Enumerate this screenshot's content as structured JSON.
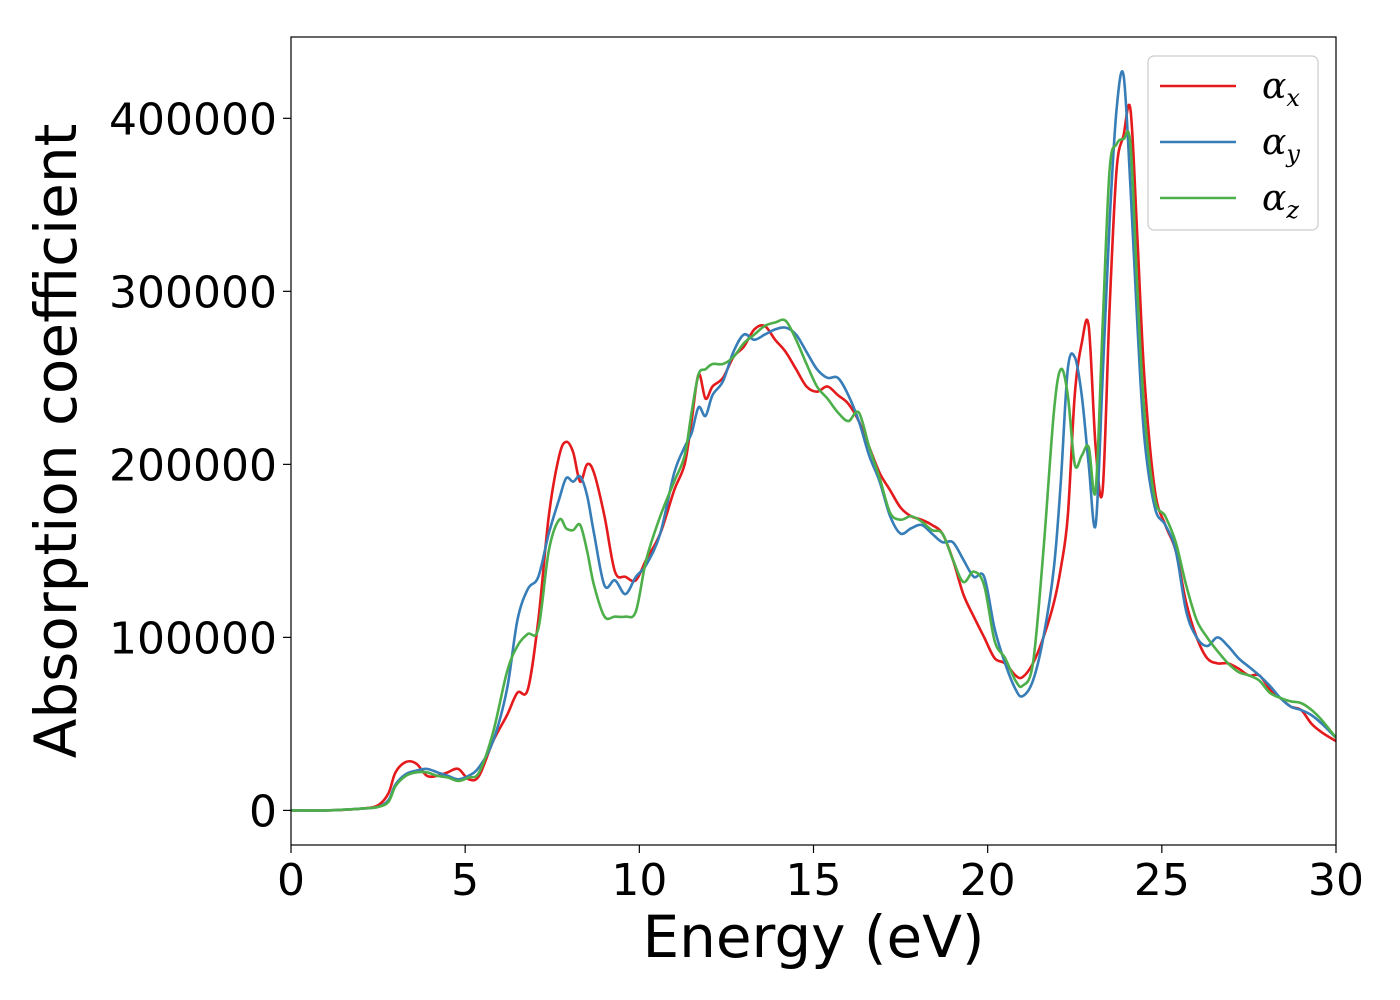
{
  "chart_data": {
    "type": "line",
    "xlabel": "Energy (eV)",
    "ylabel": "Absorption coefficient",
    "xlim": [
      0,
      30
    ],
    "ylim": [
      -20000,
      447000
    ],
    "xticks": [
      0,
      5,
      10,
      15,
      20,
      25,
      30
    ],
    "xtick_labels": [
      "0",
      "5",
      "10",
      "15",
      "20",
      "25",
      "30"
    ],
    "yticks": [
      0,
      100000,
      200000,
      300000,
      400000
    ],
    "ytick_labels": [
      "0",
      "100000",
      "200000",
      "300000",
      "400000"
    ],
    "grid": false,
    "legend_position": "top-right",
    "series": [
      {
        "name": "αx",
        "symbol": "α",
        "subscript": "x",
        "color": "#e41a1c",
        "x": [
          0,
          1,
          2,
          2.5,
          2.8,
          3.0,
          3.3,
          3.6,
          3.9,
          4.2,
          4.5,
          4.8,
          5.1,
          5.4,
          5.8,
          6.2,
          6.5,
          6.8,
          7.1,
          7.4,
          7.7,
          7.9,
          8.1,
          8.3,
          8.5,
          8.7,
          9.0,
          9.3,
          9.6,
          9.9,
          10.2,
          10.6,
          11.0,
          11.3,
          11.5,
          11.7,
          11.9,
          12.1,
          12.4,
          12.7,
          13.0,
          13.3,
          13.6,
          13.9,
          14.2,
          14.5,
          14.8,
          15.1,
          15.4,
          15.7,
          16.0,
          16.3,
          16.6,
          16.9,
          17.2,
          17.5,
          17.8,
          18.1,
          18.4,
          18.7,
          19.0,
          19.3,
          19.6,
          19.9,
          20.2,
          20.5,
          20.8,
          21.0,
          21.3,
          21.6,
          21.9,
          22.1,
          22.3,
          22.5,
          22.7,
          22.9,
          23.1,
          23.3,
          23.5,
          23.7,
          23.9,
          24.1,
          24.3,
          24.5,
          24.8,
          25.1,
          25.4,
          25.7,
          26.0,
          26.3,
          26.6,
          26.9,
          27.2,
          27.5,
          27.8,
          28.1,
          28.4,
          28.7,
          29.0,
          29.3,
          29.6,
          30
        ],
        "y": [
          0,
          0,
          1000,
          3000,
          10000,
          22000,
          28000,
          27000,
          20000,
          20000,
          22000,
          24000,
          18000,
          20000,
          40000,
          55000,
          68000,
          70000,
          110000,
          170000,
          205000,
          213000,
          207000,
          190000,
          200000,
          195000,
          170000,
          138000,
          135000,
          133000,
          145000,
          160000,
          185000,
          200000,
          225000,
          252000,
          238000,
          245000,
          250000,
          262000,
          268000,
          278000,
          280000,
          272000,
          265000,
          255000,
          245000,
          242000,
          245000,
          240000,
          235000,
          225000,
          210000,
          195000,
          185000,
          175000,
          170000,
          168000,
          165000,
          160000,
          145000,
          125000,
          112000,
          100000,
          88000,
          85000,
          78000,
          77000,
          85000,
          100000,
          120000,
          140000,
          170000,
          240000,
          270000,
          280000,
          210000,
          185000,
          290000,
          370000,
          390000,
          405000,
          330000,
          250000,
          185000,
          165000,
          150000,
          120000,
          100000,
          88000,
          85000,
          85000,
          82000,
          78000,
          78000,
          70000,
          65000,
          60000,
          58000,
          50000,
          45000,
          40000
        ]
      },
      {
        "name": "αy",
        "symbol": "α",
        "subscript": "y",
        "color": "#377eb8",
        "x": [
          0,
          1,
          2,
          2.5,
          2.8,
          3.0,
          3.3,
          3.6,
          3.9,
          4.2,
          4.5,
          4.8,
          5.1,
          5.4,
          5.8,
          6.2,
          6.5,
          6.8,
          7.1,
          7.4,
          7.7,
          7.9,
          8.1,
          8.3,
          8.5,
          8.7,
          9.0,
          9.3,
          9.6,
          9.9,
          10.2,
          10.6,
          11.0,
          11.3,
          11.5,
          11.7,
          11.9,
          12.1,
          12.4,
          12.7,
          13.0,
          13.3,
          13.6,
          13.9,
          14.2,
          14.5,
          14.8,
          15.1,
          15.4,
          15.7,
          16.0,
          16.3,
          16.6,
          16.9,
          17.2,
          17.5,
          17.8,
          18.1,
          18.4,
          18.7,
          19.0,
          19.3,
          19.6,
          19.9,
          20.2,
          20.5,
          20.8,
          21.0,
          21.3,
          21.6,
          21.9,
          22.1,
          22.3,
          22.5,
          22.7,
          22.9,
          23.1,
          23.3,
          23.5,
          23.7,
          23.9,
          24.1,
          24.3,
          24.5,
          24.8,
          25.1,
          25.4,
          25.7,
          26.0,
          26.3,
          26.6,
          26.9,
          27.2,
          27.5,
          27.8,
          28.1,
          28.4,
          28.7,
          29.0,
          29.3,
          29.6,
          30
        ],
        "y": [
          0,
          0,
          1000,
          2000,
          6000,
          15000,
          21000,
          23000,
          24000,
          22000,
          20000,
          18000,
          20000,
          25000,
          40000,
          70000,
          110000,
          128000,
          135000,
          160000,
          180000,
          192000,
          190000,
          193000,
          182000,
          160000,
          130000,
          133000,
          125000,
          135000,
          142000,
          160000,
          195000,
          210000,
          218000,
          233000,
          228000,
          240000,
          248000,
          265000,
          275000,
          272000,
          275000,
          278000,
          279000,
          275000,
          265000,
          255000,
          250000,
          250000,
          240000,
          225000,
          205000,
          190000,
          170000,
          160000,
          163000,
          165000,
          160000,
          155000,
          155000,
          145000,
          135000,
          135000,
          105000,
          85000,
          70000,
          66000,
          75000,
          100000,
          140000,
          190000,
          255000,
          262000,
          240000,
          200000,
          165000,
          250000,
          340000,
          405000,
          425000,
          360000,
          280000,
          215000,
          175000,
          165000,
          150000,
          115000,
          100000,
          95000,
          100000,
          95000,
          88000,
          83000,
          78000,
          72000,
          65000,
          60000,
          58000,
          55000,
          50000,
          42000
        ]
      },
      {
        "name": "αz",
        "symbol": "α",
        "subscript": "z",
        "color": "#4daf4a",
        "x": [
          0,
          1,
          2,
          2.5,
          2.8,
          3.0,
          3.3,
          3.6,
          3.9,
          4.2,
          4.5,
          4.8,
          5.1,
          5.4,
          5.8,
          6.2,
          6.5,
          6.8,
          7.1,
          7.4,
          7.7,
          7.9,
          8.1,
          8.3,
          8.5,
          8.7,
          9.0,
          9.3,
          9.6,
          9.9,
          10.2,
          10.6,
          11.0,
          11.3,
          11.5,
          11.7,
          11.9,
          12.1,
          12.4,
          12.7,
          13.0,
          13.3,
          13.6,
          13.9,
          14.2,
          14.5,
          14.8,
          15.1,
          15.4,
          15.7,
          16.0,
          16.3,
          16.6,
          16.9,
          17.2,
          17.5,
          17.8,
          18.1,
          18.4,
          18.7,
          19.0,
          19.3,
          19.6,
          19.9,
          20.2,
          20.5,
          20.8,
          21.0,
          21.3,
          21.6,
          21.9,
          22.1,
          22.3,
          22.5,
          22.7,
          22.9,
          23.1,
          23.3,
          23.5,
          23.7,
          23.9,
          24.1,
          24.3,
          24.5,
          24.8,
          25.1,
          25.4,
          25.7,
          26.0,
          26.3,
          26.6,
          26.9,
          27.2,
          27.5,
          27.8,
          28.1,
          28.4,
          28.7,
          29.0,
          29.3,
          29.6,
          30
        ],
        "y": [
          0,
          0,
          1000,
          2000,
          5000,
          14000,
          20000,
          22000,
          22000,
          20000,
          19000,
          17000,
          19000,
          22000,
          45000,
          80000,
          95000,
          102000,
          105000,
          150000,
          168000,
          163000,
          162000,
          165000,
          150000,
          130000,
          112000,
          112000,
          112000,
          115000,
          145000,
          170000,
          190000,
          205000,
          230000,
          252000,
          255000,
          258000,
          258000,
          262000,
          270000,
          275000,
          280000,
          282000,
          283000,
          272000,
          258000,
          245000,
          238000,
          230000,
          225000,
          230000,
          210000,
          192000,
          172000,
          168000,
          170000,
          167000,
          162000,
          160000,
          145000,
          132000,
          138000,
          130000,
          98000,
          88000,
          75000,
          72000,
          85000,
          150000,
          230000,
          255000,
          240000,
          200000,
          205000,
          210000,
          185000,
          280000,
          370000,
          385000,
          388000,
          385000,
          300000,
          230000,
          180000,
          170000,
          155000,
          130000,
          110000,
          100000,
          92000,
          85000,
          80000,
          78000,
          75000,
          68000,
          65000,
          63000,
          62000,
          58000,
          52000,
          42000
        ]
      }
    ]
  }
}
